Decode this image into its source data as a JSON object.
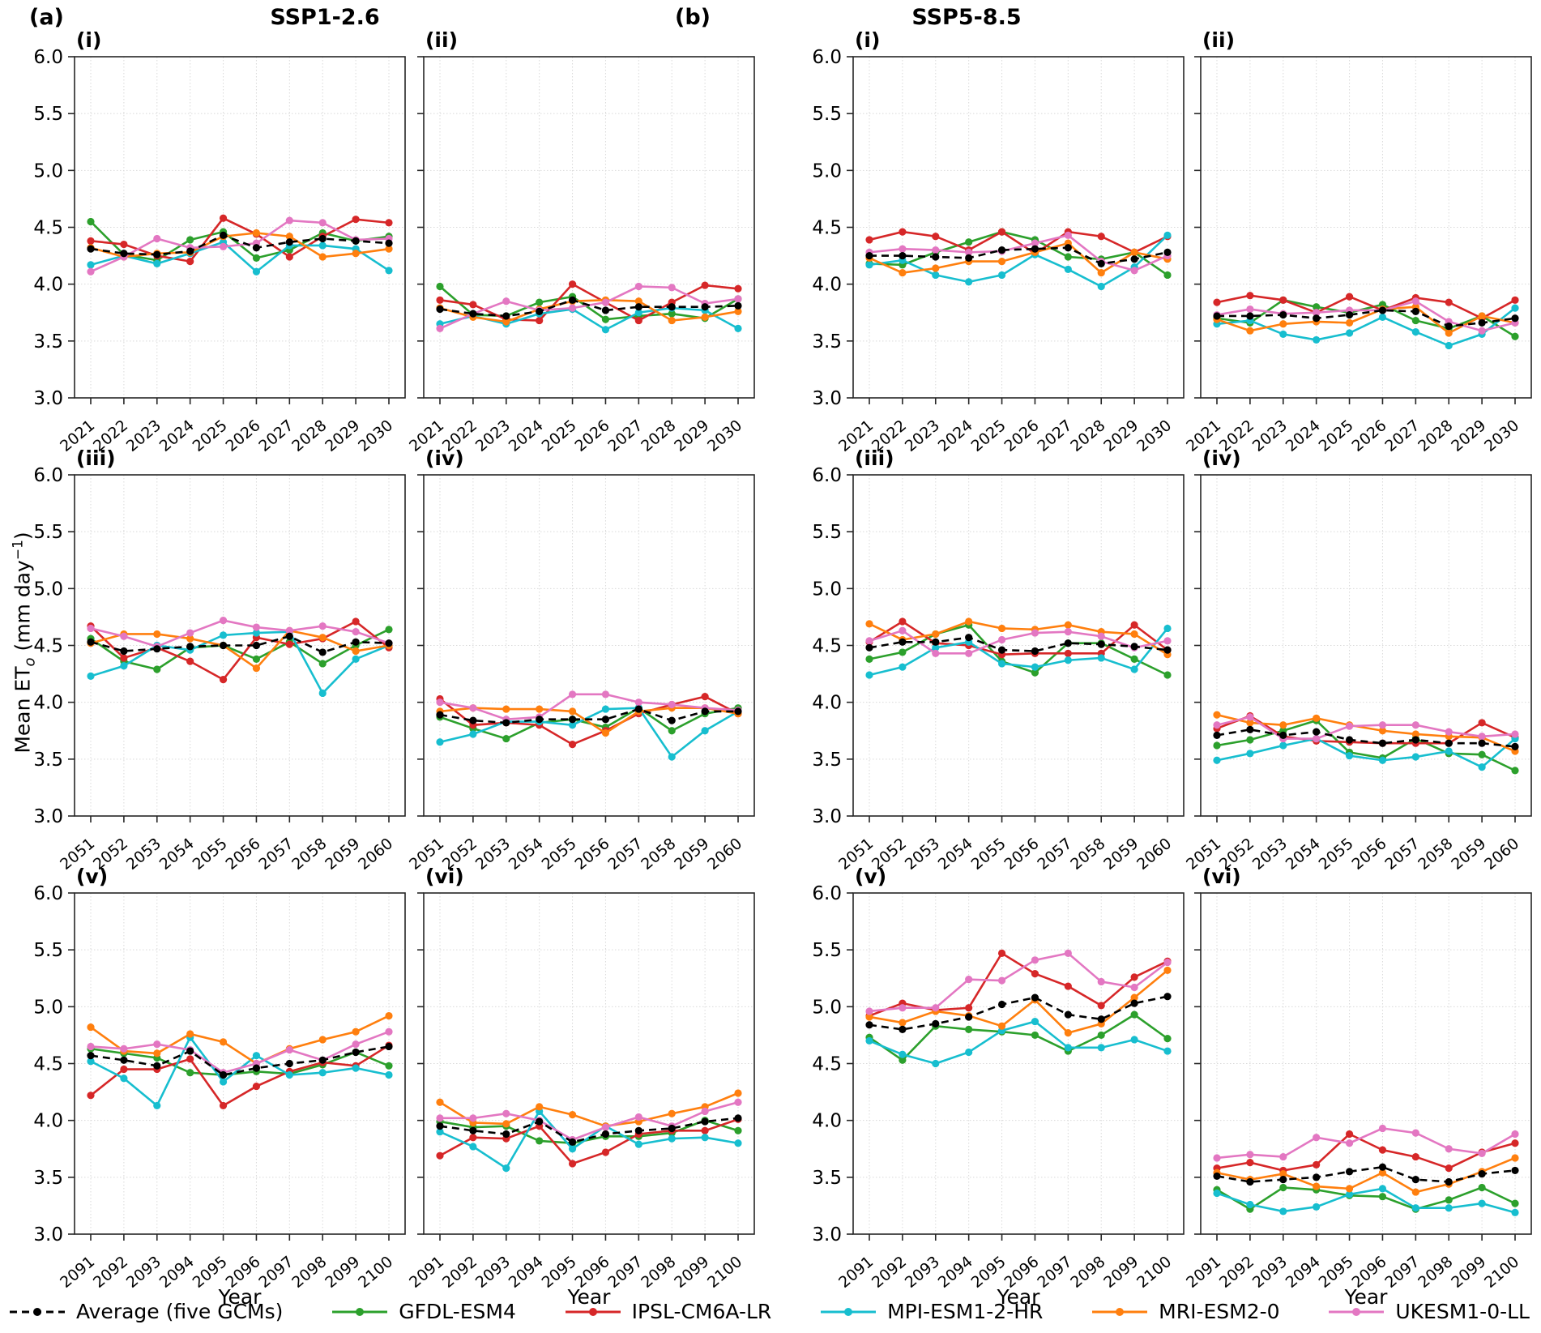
{
  "figure": {
    "group_labels": [
      "(a)",
      "(b)"
    ],
    "column_titles": [
      "SSP1-2.6",
      "SSP5-8.5"
    ],
    "xlabel": "Year",
    "ylabel": {
      "pre": "Mean ET",
      "sub": "o",
      "mid": " (mm day",
      "sup": "−1",
      "post": ")"
    },
    "ylim": [
      3.0,
      6.0
    ],
    "yticks": [
      3.0,
      3.5,
      4.0,
      4.5,
      5.0,
      5.5,
      6.0
    ],
    "grid": true
  },
  "models": {
    "average": {
      "label": "Average (five GCMs)",
      "color": "#000000",
      "dashed": true
    },
    "gfdl": {
      "label": "GFDL-ESM4",
      "color": "#2ca02c",
      "dashed": false
    },
    "ipsl": {
      "label": "IPSL-CM6A-LR",
      "color": "#d62728",
      "dashed": false
    },
    "mpi": {
      "label": "MPI-ESM1-2-HR",
      "color": "#17becf",
      "dashed": false
    },
    "mri": {
      "label": "MRI-ESM2-0",
      "color": "#ff7f0e",
      "dashed": false
    },
    "ukesm": {
      "label": "UKESM1-0-LL",
      "color": "#e377c2",
      "dashed": false
    }
  },
  "legend_order": [
    "average",
    "gfdl",
    "ipsl",
    "mpi",
    "mri",
    "ukesm"
  ],
  "chart_data": [
    {
      "type": "line",
      "id": "a-i",
      "label": "(i)",
      "scenario": "SSP1-2.6",
      "ylim": [
        3.0,
        6.0
      ],
      "x": [
        2021,
        2022,
        2023,
        2024,
        2025,
        2026,
        2027,
        2028,
        2029,
        2030
      ],
      "series": {
        "average": [
          4.31,
          4.27,
          4.26,
          4.29,
          4.43,
          4.32,
          4.37,
          4.4,
          4.38,
          4.36
        ],
        "gfdl": [
          4.55,
          4.26,
          4.21,
          4.39,
          4.46,
          4.23,
          4.3,
          4.45,
          4.38,
          4.42
        ],
        "ipsl": [
          4.38,
          4.35,
          4.25,
          4.2,
          4.58,
          4.44,
          4.24,
          4.42,
          4.57,
          4.54
        ],
        "mpi": [
          4.17,
          4.25,
          4.18,
          4.27,
          4.37,
          4.11,
          4.34,
          4.34,
          4.31,
          4.12
        ],
        "mri": [
          4.32,
          4.24,
          4.27,
          4.28,
          4.42,
          4.45,
          4.42,
          4.24,
          4.27,
          4.31
        ],
        "ukesm": [
          4.11,
          4.24,
          4.4,
          4.32,
          4.33,
          4.36,
          4.56,
          4.54,
          4.39,
          4.4
        ]
      }
    },
    {
      "type": "line",
      "id": "a-ii",
      "label": "(ii)",
      "scenario": "SSP1-2.6",
      "ylim": [
        3.0,
        6.0
      ],
      "x": [
        2021,
        2022,
        2023,
        2024,
        2025,
        2026,
        2027,
        2028,
        2029,
        2030
      ],
      "series": {
        "average": [
          3.78,
          3.74,
          3.72,
          3.76,
          3.86,
          3.77,
          3.8,
          3.8,
          3.8,
          3.81
        ],
        "gfdl": [
          3.98,
          3.73,
          3.72,
          3.84,
          3.89,
          3.69,
          3.72,
          3.74,
          3.7,
          3.87
        ],
        "ipsl": [
          3.86,
          3.82,
          3.69,
          3.68,
          4.0,
          3.84,
          3.68,
          3.84,
          3.99,
          3.96
        ],
        "mpi": [
          3.65,
          3.72,
          3.65,
          3.74,
          3.78,
          3.6,
          3.75,
          3.79,
          3.77,
          3.61
        ],
        "mri": [
          3.79,
          3.71,
          3.67,
          3.78,
          3.85,
          3.86,
          3.85,
          3.68,
          3.71,
          3.76
        ],
        "ukesm": [
          3.61,
          3.74,
          3.85,
          3.77,
          3.79,
          3.84,
          3.98,
          3.97,
          3.83,
          3.87
        ]
      }
    },
    {
      "type": "line",
      "id": "b-i",
      "label": "(i)",
      "scenario": "SSP5-8.5",
      "ylim": [
        3.0,
        6.0
      ],
      "x": [
        2021,
        2022,
        2023,
        2024,
        2025,
        2026,
        2027,
        2028,
        2029,
        2030
      ],
      "series": {
        "average": [
          4.25,
          4.25,
          4.24,
          4.23,
          4.3,
          4.31,
          4.32,
          4.18,
          4.22,
          4.28
        ],
        "gfdl": [
          4.18,
          4.17,
          4.28,
          4.37,
          4.46,
          4.39,
          4.24,
          4.22,
          4.28,
          4.08
        ],
        "ipsl": [
          4.39,
          4.46,
          4.42,
          4.3,
          4.46,
          4.27,
          4.46,
          4.42,
          4.28,
          4.42
        ],
        "mpi": [
          4.17,
          4.21,
          4.08,
          4.02,
          4.08,
          4.26,
          4.13,
          3.98,
          4.15,
          4.43
        ],
        "mri": [
          4.23,
          4.1,
          4.14,
          4.2,
          4.2,
          4.28,
          4.36,
          4.1,
          4.28,
          4.22
        ],
        "ukesm": [
          4.28,
          4.31,
          4.3,
          4.28,
          4.29,
          4.36,
          4.43,
          4.2,
          4.12,
          4.25
        ]
      }
    },
    {
      "type": "line",
      "id": "b-ii",
      "label": "(ii)",
      "scenario": "SSP5-8.5",
      "ylim": [
        3.0,
        6.0
      ],
      "x": [
        2021,
        2022,
        2023,
        2024,
        2025,
        2026,
        2027,
        2028,
        2029,
        2030
      ],
      "series": {
        "average": [
          3.72,
          3.72,
          3.73,
          3.7,
          3.73,
          3.77,
          3.76,
          3.63,
          3.66,
          3.7
        ],
        "gfdl": [
          3.7,
          3.66,
          3.86,
          3.8,
          3.75,
          3.82,
          3.68,
          3.61,
          3.72,
          3.54
        ],
        "ipsl": [
          3.84,
          3.9,
          3.86,
          3.75,
          3.89,
          3.77,
          3.88,
          3.84,
          3.7,
          3.86
        ],
        "mpi": [
          3.65,
          3.68,
          3.56,
          3.51,
          3.57,
          3.71,
          3.58,
          3.46,
          3.56,
          3.79
        ],
        "mri": [
          3.69,
          3.59,
          3.65,
          3.67,
          3.66,
          3.78,
          3.8,
          3.57,
          3.72,
          3.66
        ],
        "ukesm": [
          3.73,
          3.78,
          3.74,
          3.75,
          3.77,
          3.77,
          3.85,
          3.67,
          3.59,
          3.66
        ]
      }
    },
    {
      "type": "line",
      "id": "a-iii",
      "label": "(iii)",
      "scenario": "SSP1-2.6",
      "ylim": [
        3.0,
        6.0
      ],
      "x": [
        2051,
        2052,
        2053,
        2054,
        2055,
        2056,
        2057,
        2058,
        2059,
        2060
      ],
      "series": {
        "average": [
          4.53,
          4.45,
          4.47,
          4.49,
          4.5,
          4.5,
          4.58,
          4.44,
          4.53,
          4.52
        ],
        "gfdl": [
          4.56,
          4.36,
          4.29,
          4.48,
          4.5,
          4.38,
          4.53,
          4.34,
          4.5,
          4.64
        ],
        "ipsl": [
          4.67,
          4.39,
          4.48,
          4.36,
          4.2,
          4.57,
          4.51,
          4.56,
          4.71,
          4.48
        ],
        "mpi": [
          4.23,
          4.32,
          4.5,
          4.46,
          4.59,
          4.61,
          4.62,
          4.08,
          4.38,
          4.5
        ],
        "mri": [
          4.52,
          4.6,
          4.6,
          4.56,
          4.5,
          4.3,
          4.63,
          4.57,
          4.45,
          4.5
        ],
        "ukesm": [
          4.65,
          4.58,
          4.49,
          4.61,
          4.72,
          4.66,
          4.63,
          4.67,
          4.62,
          4.52
        ]
      }
    },
    {
      "type": "line",
      "id": "a-iv",
      "label": "(iv)",
      "scenario": "SSP1-2.6",
      "ylim": [
        3.0,
        6.0
      ],
      "x": [
        2051,
        2052,
        2053,
        2054,
        2055,
        2056,
        2057,
        2058,
        2059,
        2060
      ],
      "series": {
        "average": [
          3.89,
          3.84,
          3.82,
          3.85,
          3.85,
          3.85,
          3.94,
          3.84,
          3.92,
          3.92
        ],
        "gfdl": [
          3.87,
          3.77,
          3.68,
          3.82,
          3.85,
          3.78,
          3.95,
          3.75,
          3.9,
          3.95
        ],
        "ipsl": [
          4.03,
          3.8,
          3.82,
          3.8,
          3.63,
          3.75,
          3.9,
          3.98,
          4.05,
          3.9
        ],
        "mpi": [
          3.65,
          3.72,
          3.83,
          3.83,
          3.8,
          3.94,
          3.95,
          3.52,
          3.75,
          3.92
        ],
        "mri": [
          3.92,
          3.95,
          3.94,
          3.94,
          3.92,
          3.73,
          3.92,
          3.95,
          3.95,
          3.9
        ],
        "ukesm": [
          4.0,
          3.95,
          3.85,
          3.87,
          4.07,
          4.07,
          4.0,
          3.98,
          3.95,
          3.93
        ]
      }
    },
    {
      "type": "line",
      "id": "b-iii",
      "label": "(iii)",
      "scenario": "SSP5-8.5",
      "ylim": [
        3.0,
        6.0
      ],
      "x": [
        2051,
        2052,
        2053,
        2054,
        2055,
        2056,
        2057,
        2058,
        2059,
        2060
      ],
      "series": {
        "average": [
          4.48,
          4.53,
          4.53,
          4.57,
          4.46,
          4.45,
          4.52,
          4.51,
          4.49,
          4.46
        ],
        "gfdl": [
          4.38,
          4.44,
          4.6,
          4.68,
          4.36,
          4.26,
          4.52,
          4.52,
          4.38,
          4.24
        ],
        "ipsl": [
          4.53,
          4.71,
          4.52,
          4.5,
          4.42,
          4.43,
          4.43,
          4.43,
          4.68,
          4.46
        ],
        "mpi": [
          4.24,
          4.31,
          4.48,
          4.53,
          4.34,
          4.31,
          4.37,
          4.39,
          4.29,
          4.65
        ],
        "mri": [
          4.69,
          4.55,
          4.6,
          4.71,
          4.65,
          4.64,
          4.68,
          4.62,
          4.6,
          4.42
        ],
        "ukesm": [
          4.54,
          4.63,
          4.43,
          4.43,
          4.55,
          4.61,
          4.62,
          4.58,
          4.48,
          4.54
        ]
      }
    },
    {
      "type": "line",
      "id": "b-iv",
      "label": "(iv)",
      "scenario": "SSP5-8.5",
      "ylim": [
        3.0,
        6.0
      ],
      "x": [
        2051,
        2052,
        2053,
        2054,
        2055,
        2056,
        2057,
        2058,
        2059,
        2060
      ],
      "series": {
        "average": [
          3.71,
          3.76,
          3.71,
          3.74,
          3.67,
          3.64,
          3.67,
          3.64,
          3.64,
          3.61
        ],
        "gfdl": [
          3.62,
          3.67,
          3.75,
          3.84,
          3.56,
          3.51,
          3.68,
          3.55,
          3.54,
          3.4
        ],
        "ipsl": [
          3.77,
          3.88,
          3.7,
          3.66,
          3.65,
          3.64,
          3.64,
          3.64,
          3.82,
          3.69
        ],
        "mpi": [
          3.49,
          3.55,
          3.62,
          3.68,
          3.53,
          3.49,
          3.52,
          3.57,
          3.43,
          3.68
        ],
        "mri": [
          3.89,
          3.82,
          3.8,
          3.86,
          3.8,
          3.75,
          3.72,
          3.7,
          3.69,
          3.57
        ],
        "ukesm": [
          3.8,
          3.87,
          3.68,
          3.68,
          3.79,
          3.8,
          3.8,
          3.74,
          3.7,
          3.72
        ]
      }
    },
    {
      "type": "line",
      "id": "a-v",
      "label": "(v)",
      "scenario": "SSP1-2.6",
      "ylim": [
        3.0,
        6.0
      ],
      "x": [
        2091,
        2092,
        2093,
        2094,
        2095,
        2096,
        2097,
        2098,
        2099,
        2100
      ],
      "series": {
        "average": [
          4.57,
          4.53,
          4.48,
          4.61,
          4.4,
          4.46,
          4.5,
          4.53,
          4.6,
          4.65
        ],
        "gfdl": [
          4.63,
          4.59,
          4.55,
          4.42,
          4.4,
          4.43,
          4.41,
          4.49,
          4.6,
          4.48
        ],
        "ipsl": [
          4.22,
          4.45,
          4.45,
          4.54,
          4.13,
          4.3,
          4.43,
          4.51,
          4.48,
          4.66
        ],
        "mpi": [
          4.52,
          4.37,
          4.13,
          4.73,
          4.34,
          4.57,
          4.4,
          4.42,
          4.46,
          4.4
        ],
        "mri": [
          4.82,
          4.61,
          4.59,
          4.76,
          4.69,
          4.5,
          4.63,
          4.71,
          4.78,
          4.92
        ],
        "ukesm": [
          4.65,
          4.63,
          4.67,
          4.62,
          4.42,
          4.5,
          4.62,
          4.53,
          4.67,
          4.78
        ]
      }
    },
    {
      "type": "line",
      "id": "a-vi",
      "label": "(vi)",
      "scenario": "SSP1-2.6",
      "ylim": [
        3.0,
        6.0
      ],
      "x": [
        2091,
        2092,
        2093,
        2094,
        2095,
        2096,
        2097,
        2098,
        2099,
        2100
      ],
      "series": {
        "average": [
          3.95,
          3.91,
          3.88,
          3.99,
          3.81,
          3.88,
          3.91,
          3.93,
          3.99,
          4.02
        ],
        "gfdl": [
          3.99,
          3.94,
          3.95,
          3.82,
          3.8,
          3.86,
          3.86,
          3.89,
          4.0,
          3.91
        ],
        "ipsl": [
          3.69,
          3.85,
          3.84,
          3.95,
          3.62,
          3.72,
          3.88,
          3.91,
          3.91,
          4.01
        ],
        "mpi": [
          3.9,
          3.77,
          3.58,
          4.08,
          3.75,
          3.95,
          3.79,
          3.84,
          3.85,
          3.8
        ],
        "mri": [
          4.16,
          3.98,
          3.97,
          4.12,
          4.05,
          3.95,
          3.99,
          4.06,
          4.12,
          4.24
        ],
        "ukesm": [
          4.02,
          4.02,
          4.06,
          4.0,
          3.83,
          3.94,
          4.03,
          3.95,
          4.08,
          4.16
        ]
      }
    },
    {
      "type": "line",
      "id": "b-v",
      "label": "(v)",
      "scenario": "SSP5-8.5",
      "ylim": [
        3.0,
        6.0
      ],
      "x": [
        2091,
        2092,
        2093,
        2094,
        2095,
        2096,
        2097,
        2098,
        2099,
        2100
      ],
      "series": {
        "average": [
          4.84,
          4.8,
          4.85,
          4.91,
          5.02,
          5.08,
          4.93,
          4.89,
          5.03,
          5.09
        ],
        "gfdl": [
          4.73,
          4.53,
          4.83,
          4.8,
          4.78,
          4.75,
          4.61,
          4.75,
          4.93,
          4.72
        ],
        "ipsl": [
          4.92,
          5.03,
          4.97,
          4.99,
          5.47,
          5.29,
          5.18,
          5.01,
          5.26,
          5.4
        ],
        "mpi": [
          4.7,
          4.58,
          4.5,
          4.6,
          4.79,
          4.87,
          4.64,
          4.64,
          4.71,
          4.61
        ],
        "mri": [
          4.91,
          4.86,
          4.96,
          4.92,
          4.83,
          5.06,
          4.77,
          4.85,
          5.08,
          5.32
        ],
        "ukesm": [
          4.96,
          4.99,
          4.99,
          5.24,
          5.23,
          5.41,
          5.47,
          5.22,
          5.17,
          5.39
        ]
      }
    },
    {
      "type": "line",
      "id": "b-vi",
      "label": "(vi)",
      "scenario": "SSP5-8.5",
      "ylim": [
        3.0,
        6.0
      ],
      "x": [
        2091,
        2092,
        2093,
        2094,
        2095,
        2096,
        2097,
        2098,
        2099,
        2100
      ],
      "series": {
        "average": [
          3.51,
          3.46,
          3.48,
          3.5,
          3.55,
          3.59,
          3.48,
          3.46,
          3.53,
          3.56
        ],
        "gfdl": [
          3.39,
          3.22,
          3.41,
          3.39,
          3.34,
          3.33,
          3.22,
          3.3,
          3.41,
          3.27
        ],
        "ipsl": [
          3.58,
          3.63,
          3.56,
          3.61,
          3.88,
          3.74,
          3.68,
          3.58,
          3.72,
          3.8
        ],
        "mpi": [
          3.36,
          3.26,
          3.2,
          3.24,
          3.35,
          3.4,
          3.23,
          3.23,
          3.27,
          3.19
        ],
        "mri": [
          3.54,
          3.48,
          3.53,
          3.42,
          3.4,
          3.54,
          3.37,
          3.44,
          3.55,
          3.67
        ],
        "ukesm": [
          3.67,
          3.7,
          3.68,
          3.85,
          3.8,
          3.93,
          3.89,
          3.75,
          3.71,
          3.88
        ]
      }
    }
  ]
}
